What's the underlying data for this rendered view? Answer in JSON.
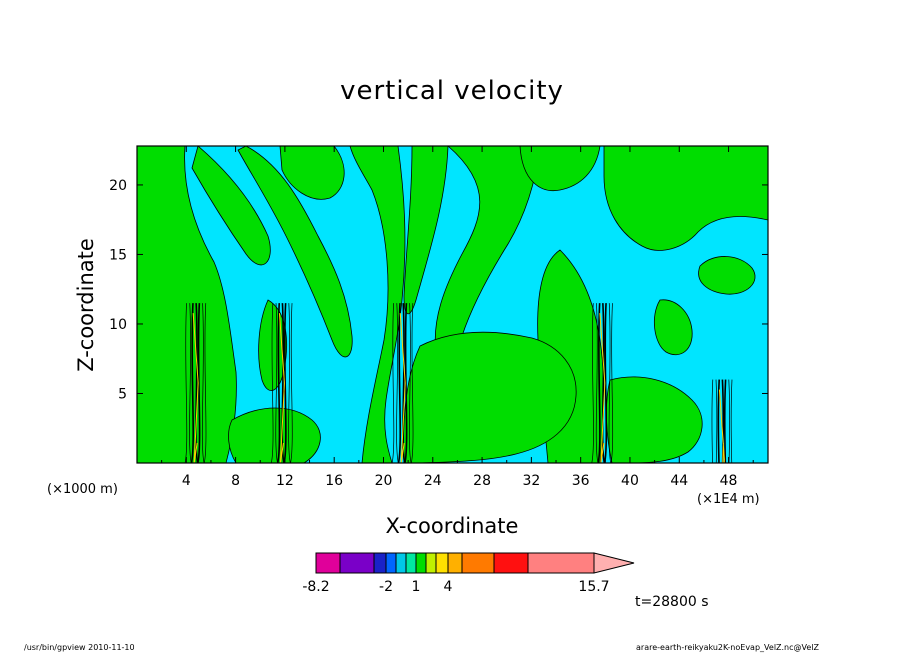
{
  "chart_data": {
    "type": "heatmap",
    "title": "vertical velocity",
    "xlabel": "X-coordinate",
    "ylabel": "Z-coordinate",
    "x_unit_left": "(×1000 m)",
    "x_unit_right": "(×1E4 m)",
    "xlim": [
      0,
      51.2
    ],
    "ylim": [
      0,
      22.8
    ],
    "x_ticks": [
      "4",
      "8",
      "12",
      "16",
      "20",
      "24",
      "28",
      "32",
      "36",
      "40",
      "44",
      "48"
    ],
    "y_ticks": [
      "5",
      "10",
      "15",
      "20"
    ],
    "x_tick_values": [
      4,
      8,
      12,
      16,
      20,
      24,
      28,
      32,
      36,
      40,
      44,
      48
    ],
    "y_tick_values": [
      5,
      10,
      15,
      20
    ],
    "background_color": "#00e5ff",
    "positive_region_color": "#00dd00",
    "contour_color": "#000000",
    "updraft_columns_x": [
      4.8,
      11.8,
      21.6,
      37.8,
      47.5
    ],
    "colorbar": {
      "colors": [
        "#e0009a",
        "#7a00c8",
        "#1a22c8",
        "#0066ff",
        "#00c8e8",
        "#00e8a0",
        "#00dd00",
        "#c0f000",
        "#ffe000",
        "#ffb000",
        "#ff7a00",
        "#ff1010",
        "#ff8080",
        "#ffb0b0"
      ],
      "labels": [
        "-8.2",
        "-2",
        "1",
        "4",
        "15.7"
      ],
      "label_values": [
        -8.2,
        -2,
        1,
        4,
        15.7
      ]
    },
    "timestamp": "t=28800 s"
  },
  "footer": {
    "left": "/usr/bin/gpview   2010-11-10",
    "right": "arare-earth-reikyaku2K-noEvap_VelZ.nc@VelZ"
  }
}
